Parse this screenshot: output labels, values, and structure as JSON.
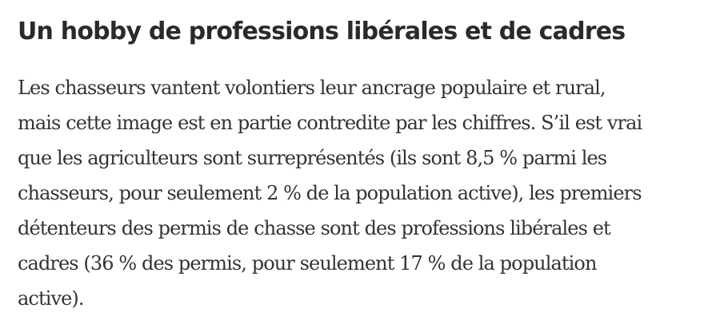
{
  "article": {
    "heading": "Un hobby de professions libérales et de cadres",
    "paragraph_lines": [
      "Les chasseurs vantent volontiers leur ancrage populaire et rural,",
      "mais cette image est en partie contredite par les chiffres. S’il est vrai",
      "que les agriculteurs sont surreprésentés (ils sont 8,5 % parmi les",
      "chasseurs, pour seulement 2 % de la population active), les premiers",
      "détenteurs des permis de chasse sont des professions libérales et",
      "cadres (36 % des permis, pour seulement 17 % de la population",
      "active)."
    ]
  }
}
